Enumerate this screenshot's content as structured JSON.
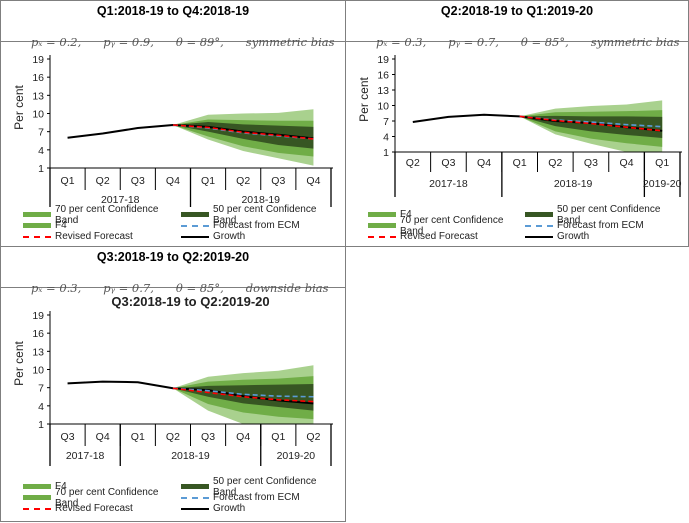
{
  "colors": {
    "band70": "#a9d18e",
    "band_f4": "#70ad47",
    "band50": "#375623",
    "ecm": "#5b9bd5",
    "revised": "#ff0000",
    "growth": "#000000",
    "legend_f4": "#70ad47",
    "legend_band70": "#70ad47",
    "legend_band50": "#375623"
  },
  "panels": [
    {
      "header_title": "Q1:2018-19 to Q4:2018-19",
      "params": [
        "pₓ = 0.2,",
        "pᵧ = 0.9,",
        "θ = 89°,",
        "symmetric bias"
      ],
      "legend": [
        [
          {
            "label": "70 per cent Confidence Band",
            "kind": "bar",
            "color": "legend_band70"
          },
          {
            "label": "50 per cent Confidence Band",
            "kind": "bar",
            "color": "legend_band50"
          }
        ],
        [
          {
            "label": "F4",
            "kind": "bar",
            "color": "legend_f4"
          },
          {
            "label": "Forecast from ECM",
            "kind": "dash",
            "color": "ecm"
          }
        ],
        [
          {
            "label": "Revised Forecast",
            "kind": "dash",
            "color": "revised"
          },
          {
            "label": "Growth",
            "kind": "solid",
            "color": "growth"
          }
        ]
      ]
    },
    {
      "header_title": "Q2:2018-19 to Q1:2019-20",
      "params": [
        "pₓ = 0.3,",
        "pᵧ = 0.7,",
        "θ = 85°,",
        "symmetric bias"
      ],
      "legend": [
        [
          {
            "label": "F4",
            "kind": "bar",
            "color": "legend_f4"
          },
          {
            "label": "50 per cent Confidence Band",
            "kind": "bar",
            "color": "legend_band50"
          }
        ],
        [
          {
            "label": "70 per cent Confidence Band",
            "kind": "bar",
            "color": "legend_band70"
          },
          {
            "label": "Forecast from ECM",
            "kind": "dash",
            "color": "ecm"
          }
        ],
        [
          {
            "label": "Revised Forecast",
            "kind": "dash",
            "color": "revised"
          },
          {
            "label": "Growth",
            "kind": "solid",
            "color": "growth"
          }
        ]
      ]
    },
    {
      "header_title": "Q3:2018-19 to Q2:2019-20",
      "params": [
        "pₓ = 0.3,",
        "pᵧ = 0.7,",
        "θ = 85°,",
        "downside bias"
      ],
      "legend": [
        [
          {
            "label": "F4",
            "kind": "bar",
            "color": "legend_f4"
          },
          {
            "label": "50 per cent Confidence Band",
            "kind": "bar",
            "color": "legend_band50"
          }
        ],
        [
          {
            "label": "70 per cent Confidence Band",
            "kind": "bar",
            "color": "legend_band70"
          },
          {
            "label": "Forecast from ECM",
            "kind": "dash",
            "color": "ecm"
          }
        ],
        [
          {
            "label": "Revised Forecast",
            "kind": "dash",
            "color": "revised"
          },
          {
            "label": "Growth",
            "kind": "solid",
            "color": "growth"
          }
        ]
      ]
    }
  ],
  "chart_data": [
    {
      "type": "area",
      "title": "",
      "ylabel": "Per cent",
      "ylim": [
        1,
        19
      ],
      "yticks": [
        1,
        4,
        7,
        10,
        13,
        16,
        19
      ],
      "categories": [
        "Q1",
        "Q2",
        "Q3",
        "Q4",
        "Q1",
        "Q2",
        "Q3",
        "Q4"
      ],
      "year_groups": [
        {
          "label": "2017-18",
          "span": 4
        },
        {
          "label": "2018-19",
          "span": 4
        }
      ],
      "forecast_start_index": 3,
      "growth": [
        6.0,
        6.7,
        7.6,
        8.1,
        7.8,
        7.0,
        6.5,
        5.9
      ],
      "ecm": [
        null,
        null,
        null,
        8.1,
        7.6,
        6.8,
        6.3,
        5.8
      ],
      "revised": [
        null,
        null,
        null,
        8.1,
        7.7,
        6.9,
        6.4,
        5.8
      ],
      "bands": {
        "outer_upper": [
          null,
          null,
          null,
          8.1,
          9.8,
          10.0,
          10.1,
          10.7
        ],
        "f4_upper": [
          null,
          null,
          null,
          8.1,
          9.0,
          8.9,
          8.8,
          8.8
        ],
        "b50_upper": [
          null,
          null,
          null,
          8.1,
          8.6,
          8.2,
          8.0,
          7.8
        ],
        "b50_lower": [
          null,
          null,
          null,
          8.1,
          7.0,
          5.8,
          4.8,
          4.2
        ],
        "f4_lower": [
          null,
          null,
          null,
          8.1,
          6.2,
          4.6,
          3.5,
          2.9
        ],
        "outer_lower": [
          null,
          null,
          null,
          8.1,
          5.7,
          3.8,
          2.6,
          1.4
        ]
      }
    },
    {
      "type": "area",
      "title": "",
      "ylabel": "Per cent",
      "ylim": [
        1,
        19
      ],
      "yticks": [
        1,
        4,
        7,
        10,
        13,
        16,
        19
      ],
      "categories": [
        "Q2",
        "Q3",
        "Q4",
        "Q1",
        "Q2",
        "Q3",
        "Q4",
        "Q1"
      ],
      "year_groups": [
        {
          "label": "2017-18",
          "span": 3
        },
        {
          "label": "2018-19",
          "span": 4
        },
        {
          "label": "2019-20",
          "span": 1
        }
      ],
      "forecast_start_index": 3,
      "growth": [
        6.8,
        7.8,
        8.2,
        7.9,
        7.0,
        6.6,
        5.8,
        5.1
      ],
      "ecm": [
        null,
        null,
        null,
        7.9,
        7.2,
        6.8,
        6.3,
        5.9
      ],
      "revised": [
        null,
        null,
        null,
        7.9,
        7.1,
        6.5,
        5.8,
        5.1
      ],
      "bands": {
        "outer_upper": [
          null,
          null,
          null,
          7.9,
          9.4,
          9.9,
          10.2,
          11.0
        ],
        "f4_upper": [
          null,
          null,
          null,
          7.9,
          8.7,
          8.8,
          8.9,
          9.1
        ],
        "b50_upper": [
          null,
          null,
          null,
          7.9,
          8.0,
          7.9,
          7.9,
          7.8
        ],
        "b50_lower": [
          null,
          null,
          null,
          7.9,
          6.0,
          5.0,
          4.3,
          3.7
        ],
        "f4_lower": [
          null,
          null,
          null,
          7.9,
          5.0,
          3.6,
          2.7,
          2.0
        ],
        "outer_lower": [
          null,
          null,
          null,
          7.9,
          4.4,
          2.6,
          1.0,
          1.0
        ]
      }
    },
    {
      "type": "area",
      "title": "Q3:2018-19 to Q2:2019-20",
      "ylabel": "Per cent",
      "ylim": [
        1,
        19
      ],
      "yticks": [
        1,
        4,
        7,
        10,
        13,
        16,
        19
      ],
      "categories": [
        "Q3",
        "Q4",
        "Q1",
        "Q2",
        "Q3",
        "Q4",
        "Q1",
        "Q2"
      ],
      "year_groups": [
        {
          "label": "2017-18",
          "span": 2
        },
        {
          "label": "2018-19",
          "span": 4
        },
        {
          "label": "2019-20",
          "span": 2
        }
      ],
      "forecast_start_index": 3,
      "growth": [
        7.7,
        8.0,
        7.9,
        6.9,
        6.6,
        5.6,
        4.9,
        4.4
      ],
      "ecm": [
        null,
        null,
        null,
        6.9,
        6.5,
        5.9,
        5.6,
        5.5
      ],
      "revised": [
        null,
        null,
        null,
        6.9,
        6.2,
        5.5,
        5.0,
        4.7
      ],
      "bands": {
        "outer_upper": [
          null,
          null,
          null,
          6.9,
          8.8,
          9.4,
          9.8,
          10.7
        ],
        "f4_upper": [
          null,
          null,
          null,
          6.9,
          8.0,
          8.3,
          8.5,
          8.9
        ],
        "b50_upper": [
          null,
          null,
          null,
          6.9,
          7.3,
          7.4,
          7.5,
          7.6
        ],
        "b50_lower": [
          null,
          null,
          null,
          6.9,
          5.5,
          4.4,
          3.8,
          3.2
        ],
        "f4_lower": [
          null,
          null,
          null,
          6.9,
          4.3,
          2.9,
          2.2,
          1.8
        ],
        "outer_lower": [
          null,
          null,
          null,
          6.9,
          3.2,
          1.0,
          1.0,
          1.0
        ]
      }
    }
  ]
}
